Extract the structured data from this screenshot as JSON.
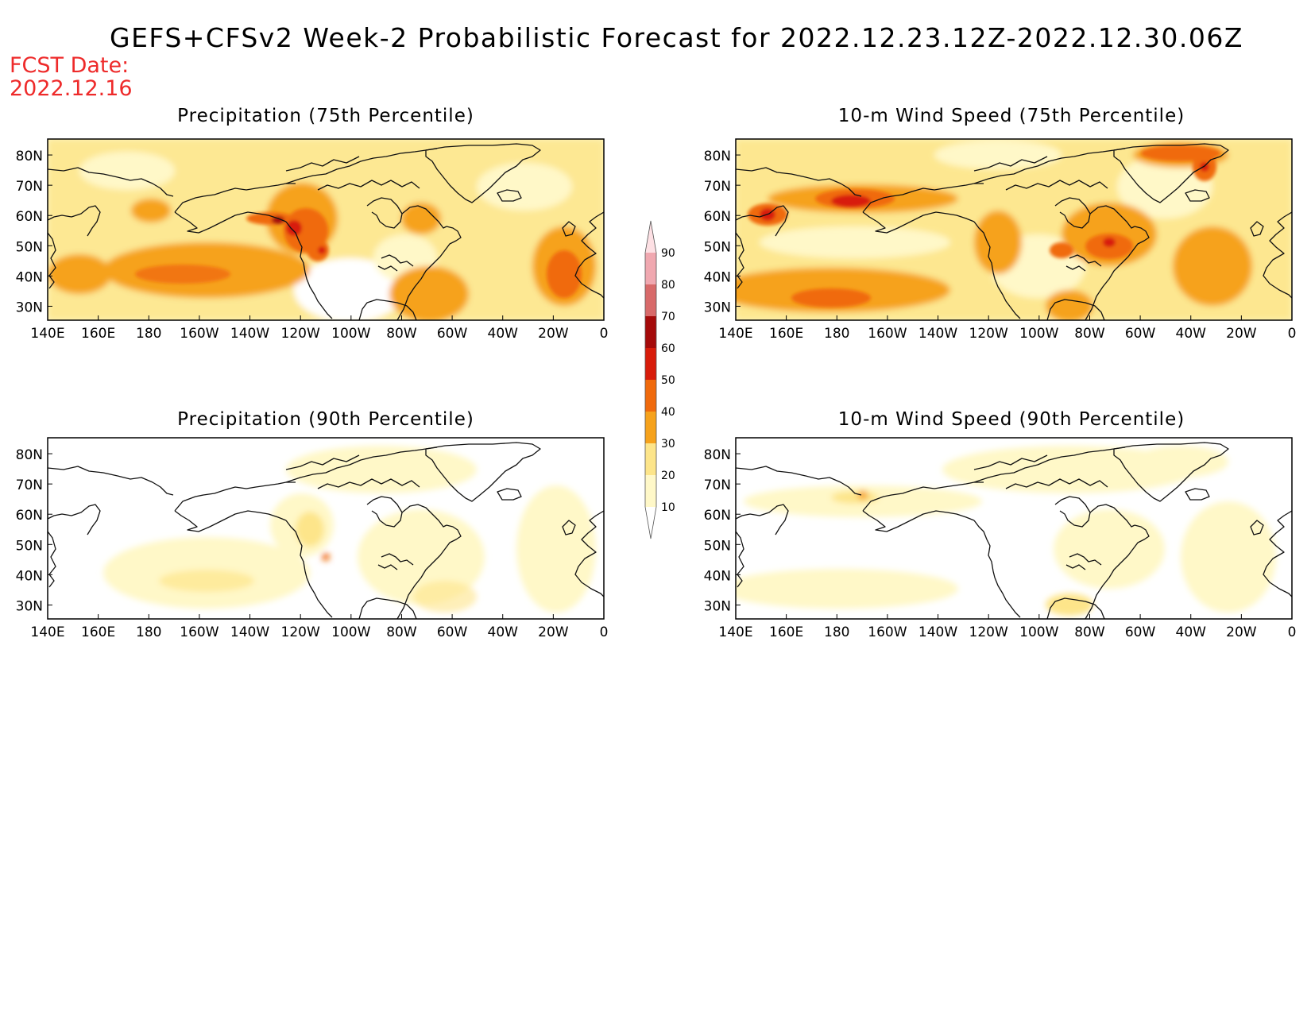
{
  "header": {
    "title": "GEFS+CFSv2 Week-2 Probabilistic Forecast for 2022.12.23.12Z-2022.12.30.06Z",
    "fcst_label": "FCST Date:",
    "fcst_date": "2022.12.16"
  },
  "panels": [
    {
      "title": "Precipitation (75th Percentile)"
    },
    {
      "title": "10-m Wind Speed (75th Percentile)"
    },
    {
      "title": "Precipitation (90th Percentile)"
    },
    {
      "title": "10-m Wind Speed (90th Percentile)"
    }
  ],
  "axes": {
    "lat_labels": [
      "80N",
      "70N",
      "60N",
      "50N",
      "40N",
      "30N"
    ],
    "lon_labels": [
      "140E",
      "160E",
      "180",
      "160W",
      "140W",
      "120W",
      "100W",
      "80W",
      "60W",
      "40W",
      "20W",
      "0"
    ]
  },
  "colorbar": {
    "levels": [
      "10",
      "20",
      "30",
      "40",
      "50",
      "60",
      "70",
      "80",
      "90"
    ],
    "colors": [
      "#fff8c8",
      "#fde58a",
      "#f6a21c",
      "#f06a0c",
      "#d81c0a",
      "#a50a0a",
      "#d86a6a",
      "#f0a8b0",
      "#fde0e4"
    ]
  },
  "colors": {
    "title_text": "#000000",
    "fcst_text": "#ee2a2a"
  }
}
